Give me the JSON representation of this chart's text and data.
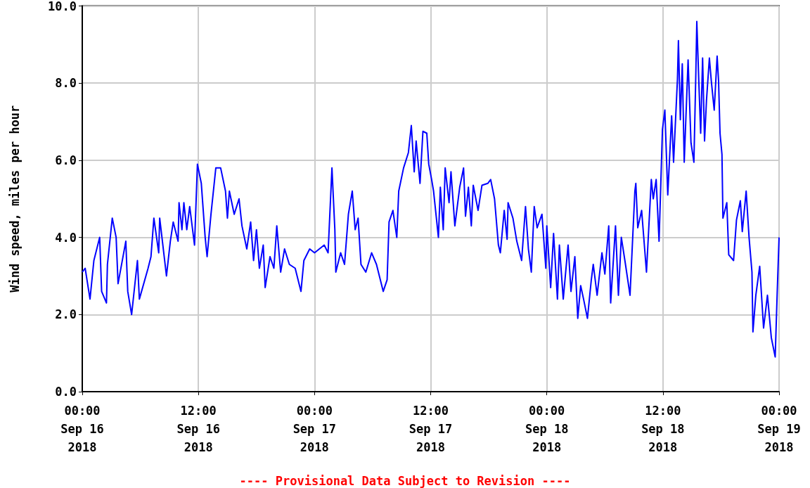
{
  "chart_data": {
    "type": "line",
    "ylabel": "Wind speed, miles per hour",
    "annotations": [
      "---- Provisional Data Subject to Revision ----"
    ],
    "xlim": [
      "2018-09-16T00:00",
      "2018-09-19T00:00"
    ],
    "xticks": [
      {
        "value": "2018-09-16T00:00",
        "label": "00:00\nSep 16\n2018"
      },
      {
        "value": "2018-09-16T12:00",
        "label": "12:00\nSep 16\n2018"
      },
      {
        "value": "2018-09-17T00:00",
        "label": "00:00\nSep 17\n2018"
      },
      {
        "value": "2018-09-17T12:00",
        "label": "12:00\nSep 17\n2018"
      },
      {
        "value": "2018-09-18T00:00",
        "label": "00:00\nSep 18\n2018"
      },
      {
        "value": "2018-09-18T12:00",
        "label": "12:00\nSep 18\n2018"
      },
      {
        "value": "2018-09-19T00:00",
        "label": "00:00\nSep 19\n2018"
      }
    ],
    "ylim": [
      0,
      10
    ],
    "yticks": [
      {
        "value": 0,
        "label": "0.0"
      },
      {
        "value": 2,
        "label": "2.0"
      },
      {
        "value": 4,
        "label": "4.0"
      },
      {
        "value": 6,
        "label": "6.0"
      },
      {
        "value": 8,
        "label": "8.0"
      },
      {
        "value": 10,
        "label": "10.0"
      }
    ],
    "grid": true,
    "marker": "none",
    "line_style": "solid",
    "series": [
      {
        "color": "#0000ff",
        "x": [
          "2018-09-16T00:00",
          "2018-09-16T00:18",
          "2018-09-16T00:48",
          "2018-09-16T01:12",
          "2018-09-16T01:48",
          "2018-09-16T02:00",
          "2018-09-16T02:30",
          "2018-09-16T02:36",
          "2018-09-16T03:06",
          "2018-09-16T03:30",
          "2018-09-16T03:42",
          "2018-09-16T04:30",
          "2018-09-16T04:42",
          "2018-09-16T05:06",
          "2018-09-16T05:42",
          "2018-09-16T05:54",
          "2018-09-16T06:48",
          "2018-09-16T07:06",
          "2018-09-16T07:24",
          "2018-09-16T07:54",
          "2018-09-16T08:00",
          "2018-09-16T08:42",
          "2018-09-16T09:06",
          "2018-09-16T09:24",
          "2018-09-16T09:54",
          "2018-09-16T10:00",
          "2018-09-16T10:18",
          "2018-09-16T10:30",
          "2018-09-16T10:48",
          "2018-09-16T11:06",
          "2018-09-16T11:36",
          "2018-09-16T11:54",
          "2018-09-16T12:18",
          "2018-09-16T12:42",
          "2018-09-16T12:54",
          "2018-09-16T13:18",
          "2018-09-16T13:48",
          "2018-09-16T14:18",
          "2018-09-16T14:48",
          "2018-09-16T15:00",
          "2018-09-16T15:12",
          "2018-09-16T15:42",
          "2018-09-16T16:12",
          "2018-09-16T16:30",
          "2018-09-16T17:00",
          "2018-09-16T17:24",
          "2018-09-16T17:42",
          "2018-09-16T18:00",
          "2018-09-16T18:18",
          "2018-09-16T18:42",
          "2018-09-16T18:54",
          "2018-09-16T19:24",
          "2018-09-16T19:48",
          "2018-09-16T20:06",
          "2018-09-16T20:30",
          "2018-09-16T20:54",
          "2018-09-16T21:24",
          "2018-09-16T22:00",
          "2018-09-16T22:36",
          "2018-09-16T22:54",
          "2018-09-16T23:30",
          "2018-09-17T00:00",
          "2018-09-17T01:00",
          "2018-09-17T01:24",
          "2018-09-17T01:48",
          "2018-09-17T02:06",
          "2018-09-17T02:12",
          "2018-09-17T02:42",
          "2018-09-17T03:06",
          "2018-09-17T03:30",
          "2018-09-17T03:54",
          "2018-09-17T04:12",
          "2018-09-17T04:30",
          "2018-09-17T04:48",
          "2018-09-17T05:18",
          "2018-09-17T05:54",
          "2018-09-17T06:24",
          "2018-09-17T06:48",
          "2018-09-17T07:06",
          "2018-09-17T07:30",
          "2018-09-17T07:42",
          "2018-09-17T08:06",
          "2018-09-17T08:30",
          "2018-09-17T08:42",
          "2018-09-17T09:12",
          "2018-09-17T09:42",
          "2018-09-17T10:00",
          "2018-09-17T10:18",
          "2018-09-17T10:30",
          "2018-09-17T10:54",
          "2018-09-17T11:12",
          "2018-09-17T11:36",
          "2018-09-17T11:48",
          "2018-09-17T12:06",
          "2018-09-17T12:18",
          "2018-09-17T12:48",
          "2018-09-17T13:00",
          "2018-09-17T13:18",
          "2018-09-17T13:30",
          "2018-09-17T13:54",
          "2018-09-17T14:06",
          "2018-09-17T14:30",
          "2018-09-17T15:00",
          "2018-09-17T15:24",
          "2018-09-17T15:36",
          "2018-09-17T15:54",
          "2018-09-17T16:12",
          "2018-09-17T16:24",
          "2018-09-17T16:54",
          "2018-09-17T17:18",
          "2018-09-17T17:54",
          "2018-09-17T18:12",
          "2018-09-17T18:36",
          "2018-09-17T19:00",
          "2018-09-17T19:12",
          "2018-09-17T19:36",
          "2018-09-17T19:54",
          "2018-09-17T20:00",
          "2018-09-17T20:30",
          "2018-09-17T20:54",
          "2018-09-17T21:24",
          "2018-09-17T21:48",
          "2018-09-17T22:06",
          "2018-09-17T22:24",
          "2018-09-17T22:42",
          "2018-09-17T23:00",
          "2018-09-17T23:30",
          "2018-09-17T23:54",
          "2018-09-18T00:00",
          "2018-09-18T00:24",
          "2018-09-18T00:42",
          "2018-09-18T01:06",
          "2018-09-18T01:18",
          "2018-09-18T01:42",
          "2018-09-18T02:12",
          "2018-09-18T02:30",
          "2018-09-18T02:54",
          "2018-09-18T03:12",
          "2018-09-18T03:30",
          "2018-09-18T03:48",
          "2018-09-18T04:12",
          "2018-09-18T04:36",
          "2018-09-18T04:48",
          "2018-09-18T05:12",
          "2018-09-18T05:42",
          "2018-09-18T06:00",
          "2018-09-18T06:24",
          "2018-09-18T06:36",
          "2018-09-18T07:06",
          "2018-09-18T07:24",
          "2018-09-18T07:42",
          "2018-09-18T08:06",
          "2018-09-18T08:36",
          "2018-09-18T09:06",
          "2018-09-18T09:12",
          "2018-09-18T09:24",
          "2018-09-18T09:48",
          "2018-09-18T10:18",
          "2018-09-18T10:36",
          "2018-09-18T10:48",
          "2018-09-18T11:00",
          "2018-09-18T11:18",
          "2018-09-18T11:36",
          "2018-09-18T11:57",
          "2018-09-18T12:12",
          "2018-09-18T12:30",
          "2018-09-18T12:54",
          "2018-09-18T13:06",
          "2018-09-18T13:30",
          "2018-09-18T13:36",
          "2018-09-18T13:48",
          "2018-09-18T14:00",
          "2018-09-18T14:12",
          "2018-09-18T14:36",
          "2018-09-18T14:54",
          "2018-09-18T15:12",
          "2018-09-18T15:24",
          "2018-09-18T15:30",
          "2018-09-18T15:42",
          "2018-09-18T15:54",
          "2018-09-18T16:06",
          "2018-09-18T16:18",
          "2018-09-18T16:30",
          "2018-09-18T16:48",
          "2018-09-18T17:00",
          "2018-09-18T17:18",
          "2018-09-18T17:36",
          "2018-09-18T17:45",
          "2018-09-18T17:54",
          "2018-09-18T18:06",
          "2018-09-18T18:12",
          "2018-09-18T18:36",
          "2018-09-18T18:48",
          "2018-09-18T19:18",
          "2018-09-18T19:36",
          "2018-09-18T20:00",
          "2018-09-18T20:12",
          "2018-09-18T20:36",
          "2018-09-18T20:54",
          "2018-09-18T21:12",
          "2018-09-18T21:18",
          "2018-09-18T21:36",
          "2018-09-18T22:00",
          "2018-09-18T22:24",
          "2018-09-18T22:48",
          "2018-09-18T23:12",
          "2018-09-18T23:36",
          "2018-09-18T23:48",
          "2018-09-19T00:00"
        ],
        "values": [
          3.1,
          3.2,
          2.4,
          3.4,
          4.0,
          2.6,
          2.3,
          3.3,
          4.5,
          4.0,
          2.8,
          3.9,
          2.6,
          2.0,
          3.4,
          2.4,
          3.2,
          3.5,
          4.5,
          3.6,
          4.5,
          3.0,
          3.9,
          4.4,
          3.9,
          4.9,
          4.2,
          4.9,
          4.2,
          4.8,
          3.8,
          5.9,
          5.4,
          4.0,
          3.5,
          4.6,
          5.8,
          5.8,
          5.2,
          4.5,
          5.2,
          4.6,
          5.0,
          4.3,
          3.7,
          4.4,
          3.4,
          4.2,
          3.2,
          3.8,
          2.7,
          3.5,
          3.2,
          4.3,
          3.1,
          3.7,
          3.3,
          3.2,
          2.6,
          3.4,
          3.7,
          3.6,
          3.8,
          3.6,
          5.8,
          4.2,
          3.1,
          3.6,
          3.3,
          4.6,
          5.2,
          4.2,
          4.5,
          3.3,
          3.1,
          3.6,
          3.3,
          2.9,
          2.6,
          2.9,
          4.4,
          4.7,
          4.0,
          5.2,
          5.8,
          6.2,
          6.9,
          5.7,
          6.5,
          5.4,
          6.75,
          6.7,
          5.9,
          5.5,
          5.2,
          4.0,
          5.3,
          4.2,
          5.8,
          4.9,
          5.7,
          4.3,
          5.3,
          5.8,
          4.55,
          5.3,
          4.3,
          5.35,
          4.7,
          5.35,
          5.4,
          5.5,
          5.0,
          3.8,
          3.6,
          4.7,
          3.95,
          4.9,
          4.5,
          3.9,
          3.4,
          4.8,
          3.7,
          3.1,
          4.8,
          4.25,
          4.6,
          3.2,
          4.3,
          2.7,
          4.1,
          2.4,
          3.8,
          2.4,
          3.8,
          2.6,
          3.5,
          1.9,
          2.75,
          2.4,
          1.9,
          2.9,
          3.3,
          2.5,
          3.6,
          3.05,
          4.3,
          2.3,
          4.3,
          2.5,
          4.0,
          3.35,
          2.5,
          5.2,
          5.4,
          4.25,
          4.7,
          3.1,
          4.55,
          5.5,
          5.0,
          5.5,
          3.9,
          6.8,
          7.3,
          5.1,
          7.15,
          5.95,
          8.1,
          9.1,
          7.05,
          8.5,
          5.95,
          8.6,
          6.45,
          5.95,
          8.25,
          9.6,
          8.1,
          6.7,
          8.65,
          6.5,
          7.55,
          8.65,
          8.05,
          7.3,
          8.7,
          8.05,
          6.7,
          6.15,
          4.5,
          4.9,
          3.55,
          3.4,
          4.45,
          4.95,
          4.15,
          5.2,
          4.0,
          3.1,
          1.55,
          2.5,
          3.25,
          1.65,
          2.5,
          1.4,
          0.9,
          2.5,
          4.0
        ]
      }
    ]
  }
}
